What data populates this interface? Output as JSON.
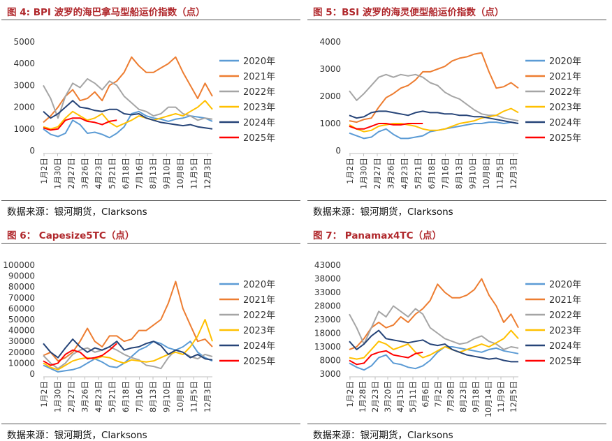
{
  "colors": {
    "title_red": "#b0282c",
    "s2020": "#5b9bd5",
    "s2021": "#ed7d31",
    "s2022": "#a5a5a5",
    "s2023": "#ffc000",
    "s2024": "#264478",
    "s2025": "#ff0000"
  },
  "source_text": "数据来源：银河期货，Clarksons",
  "chart_data": [
    {
      "type": "line",
      "title": "图 4:  BPI 波罗的海巴拿马型船运价指数（点）",
      "x_tick_labels": [
        "1月2日",
        "1月30日",
        "2月27日",
        "3月26日",
        "4月23日",
        "5月21日",
        "6月18日",
        "7月16日",
        "8月13日",
        "9月10日",
        "10月8日",
        "11月5日",
        "12月3日"
      ],
      "y_ticks": [
        0,
        1000,
        2000,
        3000,
        4000,
        5000
      ],
      "ylim": [
        0,
        5000
      ],
      "legend_position": "right",
      "series": [
        {
          "name": "2020年",
          "values": [
            1000,
            750,
            650,
            800,
            1400,
            1200,
            800,
            850,
            750,
            600,
            800,
            1100,
            1700,
            1800,
            1600,
            1500,
            1450,
            1350,
            1450,
            1500,
            1600,
            1550,
            1500,
            1350
          ]
        },
        {
          "name": "2021年",
          "values": [
            1300,
            1600,
            2000,
            2500,
            2800,
            2300,
            2400,
            2700,
            2300,
            3000,
            3200,
            3600,
            4300,
            3900,
            3600,
            3600,
            3800,
            4000,
            4300,
            3600,
            3000,
            2400,
            3100,
            2500
          ]
        },
        {
          "name": "2022年",
          "values": [
            3000,
            2400,
            1500,
            2500,
            3100,
            2900,
            3300,
            3100,
            2800,
            3200,
            3000,
            2500,
            2200,
            1900,
            1800,
            1600,
            1700,
            2000,
            2000,
            1700,
            1600,
            1400,
            1500,
            1450
          ]
        },
        {
          "name": "2023年",
          "values": [
            1100,
            1000,
            1100,
            1500,
            1800,
            1600,
            1400,
            1500,
            1700,
            1300,
            1100,
            1250,
            1400,
            1600,
            1500,
            1400,
            1500,
            1600,
            1700,
            1600,
            1800,
            2000,
            2300,
            1900
          ]
        },
        {
          "name": "2024年",
          "values": [
            1800,
            1500,
            1700,
            2000,
            2300,
            2000,
            1950,
            1850,
            1800,
            1900,
            1900,
            1700,
            1650,
            1700,
            1500,
            1400,
            1300,
            1250,
            1200,
            1150,
            1200,
            1100,
            1050,
            1000
          ]
        },
        {
          "name": "2025年",
          "values": [
            1050,
            950,
            1000,
            1400,
            1500,
            1500,
            1350,
            1300,
            1200,
            1350,
            1400
          ]
        }
      ],
      "source": "数据来源：银河期货，Clarksons"
    },
    {
      "type": "line",
      "title": "图 5：BSI 波罗的海灵便型船运价指数（点）",
      "x_tick_labels": [
        "1月2日",
        "1月30日",
        "2月27日",
        "3月26日",
        "4月23日",
        "5月21日",
        "6月18日",
        "7月16日",
        "8月13日",
        "9月10日",
        "10月8日",
        "11月5日",
        "12月3日"
      ],
      "y_ticks": [
        0,
        1000,
        2000,
        3000,
        4000
      ],
      "ylim": [
        0,
        4000
      ],
      "legend_position": "right",
      "series": [
        {
          "name": "2020年",
          "values": [
            650,
            550,
            450,
            500,
            700,
            800,
            600,
            450,
            450,
            500,
            550,
            700,
            750,
            800,
            850,
            900,
            950,
            1000,
            1000,
            1050,
            1050,
            1000,
            1050,
            1000
          ]
        },
        {
          "name": "2021年",
          "values": [
            1100,
            1050,
            1150,
            1200,
            1600,
            1950,
            2100,
            2300,
            2400,
            2600,
            2900,
            2900,
            3000,
            3100,
            3300,
            3400,
            3450,
            3550,
            3600,
            2900,
            2300,
            2350,
            2500,
            2300
          ]
        },
        {
          "name": "2022年",
          "values": [
            2200,
            1850,
            2100,
            2400,
            2700,
            2800,
            2700,
            2800,
            2750,
            2800,
            2700,
            2500,
            2400,
            2150,
            2000,
            1900,
            1700,
            1500,
            1350,
            1300,
            1300,
            1200,
            1150,
            1100
          ]
        },
        {
          "name": "2023年",
          "values": [
            950,
            800,
            700,
            750,
            900,
            950,
            1000,
            1000,
            950,
            900,
            800,
            750,
            750,
            800,
            900,
            1000,
            1050,
            1100,
            1200,
            1250,
            1300,
            1450,
            1550,
            1400
          ]
        },
        {
          "name": "2024年",
          "values": [
            1300,
            1200,
            1250,
            1400,
            1450,
            1450,
            1400,
            1350,
            1300,
            1400,
            1450,
            1400,
            1400,
            1350,
            1350,
            1300,
            1300,
            1250,
            1250,
            1200,
            1150,
            1100,
            1050,
            1000
          ]
        },
        {
          "name": "2025年",
          "values": [
            900,
            800,
            800,
            900,
            1000,
            1000,
            950,
            950,
            1000,
            1000,
            1000
          ]
        }
      ],
      "source": "数据来源：银河期货，Clarksons"
    },
    {
      "type": "line",
      "title": "图 6：  Capesize5TC（点）",
      "x_tick_labels": [
        "1月2日",
        "1月30日",
        "2月27日",
        "3月26日",
        "4月23日",
        "5月21日",
        "6月18日",
        "7月16日",
        "8月13日",
        "9月10日",
        "10月8日",
        "11月5日",
        "12月3日"
      ],
      "y_ticks": [
        0,
        10000,
        20000,
        30000,
        40000,
        50000,
        60000,
        70000,
        80000,
        90000,
        100000
      ],
      "ylim": [
        0,
        100000
      ],
      "legend_position": "right",
      "series": [
        {
          "name": "2020年",
          "values": [
            8000,
            5000,
            2000,
            3000,
            4000,
            6000,
            10000,
            14000,
            11000,
            7000,
            6000,
            10000,
            16000,
            22000,
            25000,
            30000,
            28000,
            24000,
            22000,
            25000,
            30000,
            20000,
            15000,
            12000
          ]
        },
        {
          "name": "2021年",
          "values": [
            17000,
            20000,
            12000,
            15000,
            20000,
            30000,
            42000,
            30000,
            25000,
            35000,
            35000,
            30000,
            32000,
            40000,
            40000,
            45000,
            50000,
            65000,
            85000,
            60000,
            45000,
            30000,
            32000,
            25000
          ]
        },
        {
          "name": "2022年",
          "values": [
            17000,
            10000,
            5000,
            10000,
            18000,
            22000,
            24000,
            20000,
            22000,
            25000,
            22000,
            18000,
            15000,
            13000,
            8000,
            7000,
            5000,
            15000,
            22000,
            20000,
            16000,
            14000,
            18000,
            16000
          ]
        },
        {
          "name": "2023年",
          "values": [
            10000,
            6000,
            4000,
            8000,
            12000,
            14000,
            15000,
            14000,
            16000,
            15000,
            12000,
            10000,
            13000,
            12000,
            11000,
            12000,
            15000,
            18000,
            20000,
            18000,
            25000,
            35000,
            50000,
            30000
          ]
        },
        {
          "name": "2024年",
          "values": [
            28000,
            20000,
            15000,
            24000,
            32000,
            25000,
            20000,
            24000,
            22000,
            25000,
            30000,
            22000,
            24000,
            25000,
            28000,
            30000,
            26000,
            18000,
            22000,
            20000,
            15000,
            18000,
            14000,
            13000
          ]
        },
        {
          "name": "2025年",
          "values": [
            12000,
            8000,
            10000,
            18000,
            22000,
            20000,
            14000,
            15000,
            17000,
            22000,
            28000
          ]
        }
      ],
      "source": "数据来源：银河期货，Clarksons"
    },
    {
      "type": "line",
      "title": "图 7：  Panamax4TC（点）",
      "x_tick_labels": [
        "1月2日",
        "1月28日",
        "2月23日",
        "3月20日",
        "4月15日",
        "5月11日",
        "6月6日",
        "7月2日",
        "7月28日",
        "8月23日",
        "9月18日",
        "10月14日",
        "11月9日",
        "12月5日"
      ],
      "y_ticks": [
        3000,
        8000,
        13000,
        18000,
        23000,
        28000,
        33000,
        38000,
        43000
      ],
      "ylim": [
        3000,
        43000
      ],
      "legend_position": "right",
      "series": [
        {
          "name": "2020年",
          "values": [
            7000,
            5500,
            4500,
            6000,
            9000,
            10000,
            7000,
            6500,
            5500,
            5000,
            6000,
            8000,
            11000,
            13000,
            13000,
            12500,
            12000,
            11500,
            11000,
            12000,
            12500,
            11500,
            11000,
            10500
          ]
        },
        {
          "name": "2021年",
          "values": [
            12000,
            13000,
            16000,
            20000,
            22000,
            20000,
            21000,
            24000,
            22000,
            25000,
            27000,
            30000,
            36000,
            33000,
            31000,
            31000,
            32000,
            34000,
            38000,
            32000,
            28000,
            22000,
            25000,
            20000
          ]
        },
        {
          "name": "2022年",
          "values": [
            25000,
            20000,
            14000,
            20000,
            26000,
            24000,
            28000,
            26000,
            24000,
            27000,
            25000,
            20000,
            18000,
            16000,
            15000,
            14000,
            14500,
            16000,
            17000,
            15000,
            14000,
            12000,
            13000,
            12500
          ]
        },
        {
          "name": "2023年",
          "values": [
            9000,
            8500,
            9000,
            12000,
            15000,
            14000,
            12000,
            13000,
            14000,
            11000,
            9000,
            10000,
            11500,
            13000,
            12000,
            11000,
            12000,
            13000,
            14000,
            13000,
            14500,
            16000,
            19000,
            16000
          ]
        },
        {
          "name": "2024年",
          "values": [
            15000,
            12000,
            14000,
            17000,
            19000,
            16000,
            15500,
            15000,
            14500,
            15000,
            15500,
            14000,
            13500,
            14000,
            12000,
            11000,
            10000,
            9500,
            9000,
            8500,
            8800,
            8000,
            7500,
            7500
          ]
        },
        {
          "name": "2025年",
          "values": [
            8000,
            6500,
            7000,
            10000,
            11000,
            11500,
            10000,
            9500,
            9000,
            10500,
            11000
          ]
        }
      ],
      "source": "数据来源：银河期货，Clarksons"
    }
  ]
}
